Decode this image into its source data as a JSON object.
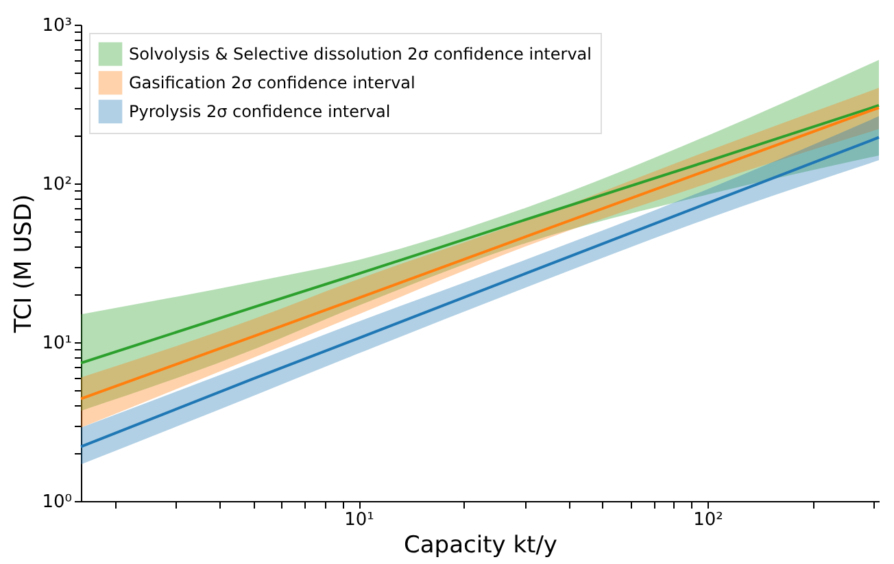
{
  "chart_data": {
    "type": "line",
    "xlabel": "Capacity kt/y",
    "ylabel": "TCI (M USD)",
    "log": "xy",
    "grid": false,
    "legend": "top left",
    "marker": "none",
    "line_style": "solid",
    "xlim": [
      1.6,
      310
    ],
    "ylim": [
      1,
      1000
    ],
    "xticks": [
      {
        "value": 2,
        "label": null
      },
      {
        "value": 3,
        "label": null
      },
      {
        "value": 4,
        "label": null
      },
      {
        "value": 5,
        "label": null
      },
      {
        "value": 6,
        "label": null
      },
      {
        "value": 7,
        "label": null
      },
      {
        "value": 8,
        "label": null
      },
      {
        "value": 9,
        "label": null
      },
      {
        "value": 10,
        "label": "10¹"
      },
      {
        "value": 20,
        "label": null
      },
      {
        "value": 30,
        "label": null
      },
      {
        "value": 40,
        "label": null
      },
      {
        "value": 50,
        "label": null
      },
      {
        "value": 60,
        "label": null
      },
      {
        "value": 70,
        "label": null
      },
      {
        "value": 80,
        "label": null
      },
      {
        "value": 90,
        "label": null
      },
      {
        "value": 100,
        "label": "10²"
      },
      {
        "value": 200,
        "label": null
      },
      {
        "value": 300,
        "label": null
      }
    ],
    "yticks": [
      {
        "value": 1,
        "label": "10⁰"
      },
      {
        "value": 2,
        "label": null
      },
      {
        "value": 3,
        "label": null
      },
      {
        "value": 4,
        "label": null
      },
      {
        "value": 5,
        "label": null
      },
      {
        "value": 6,
        "label": null
      },
      {
        "value": 7,
        "label": null
      },
      {
        "value": 8,
        "label": null
      },
      {
        "value": 9,
        "label": null
      },
      {
        "value": 10,
        "label": "10¹"
      },
      {
        "value": 20,
        "label": null
      },
      {
        "value": 30,
        "label": null
      },
      {
        "value": 40,
        "label": null
      },
      {
        "value": 50,
        "label": null
      },
      {
        "value": 60,
        "label": null
      },
      {
        "value": 70,
        "label": null
      },
      {
        "value": 80,
        "label": null
      },
      {
        "value": 90,
        "label": null
      },
      {
        "value": 100,
        "label": "10²"
      },
      {
        "value": 200,
        "label": null
      },
      {
        "value": 300,
        "label": null
      },
      {
        "value": 400,
        "label": null
      },
      {
        "value": 500,
        "label": null
      },
      {
        "value": 600,
        "label": null
      },
      {
        "value": 700,
        "label": null
      },
      {
        "value": 800,
        "label": null
      },
      {
        "value": 900,
        "label": null
      },
      {
        "value": 1000,
        "label": "10³"
      }
    ],
    "x": [
      1.6,
      5,
      10,
      30,
      100,
      310
    ],
    "series": [
      {
        "name": "Solvolysis & Selective dissolution 2σ confidence interval",
        "color": "#2ca02c",
        "values": [
          7.4,
          16.6,
          27,
          59,
          138,
          310
        ],
        "lower": [
          3.7,
          9,
          17,
          42,
          85,
          150
        ],
        "upper": [
          15,
          24,
          33,
          70,
          200,
          600
        ]
      },
      {
        "name": "Gasification 2σ confidence interval",
        "color": "#ff7f0e",
        "values": [
          4.4,
          10.9,
          19,
          46,
          121,
          300
        ],
        "lower": [
          2.9,
          8,
          15,
          40,
          100,
          220
        ],
        "upper": [
          6,
          14,
          25,
          58,
          160,
          400
        ]
      },
      {
        "name": "Pyrolysis 2σ confidence interval",
        "color": "#1f77b4",
        "values": [
          2.2,
          5.9,
          10.6,
          27,
          75,
          195
        ],
        "lower": [
          1.7,
          4.6,
          8.5,
          22,
          60,
          140
        ],
        "upper": [
          2.9,
          7.5,
          13.5,
          33,
          92,
          265
        ]
      }
    ]
  }
}
